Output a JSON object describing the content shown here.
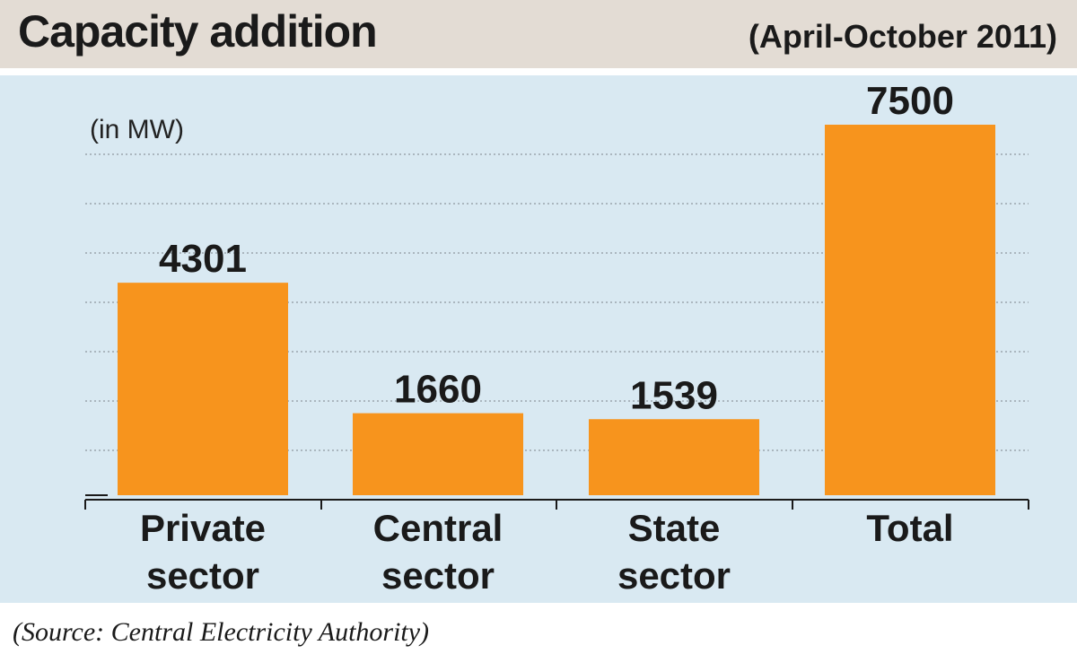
{
  "chart_data": {
    "type": "bar",
    "title": "Capacity addition",
    "subtitle": "(April-October 2011)",
    "ylabel": "(in MW)",
    "categories": [
      [
        "Private",
        "sector"
      ],
      [
        "Central",
        "sector"
      ],
      [
        "State",
        "sector"
      ],
      [
        "Total"
      ]
    ],
    "values": [
      4301,
      1660,
      1539,
      7500
    ],
    "value_labels": [
      "4301",
      "1660",
      "1539",
      "7500"
    ],
    "ylim": [
      0,
      7500
    ],
    "grid": true,
    "bar_color": "#f7941d",
    "source": "(Source: Central Electricity Authority)"
  }
}
